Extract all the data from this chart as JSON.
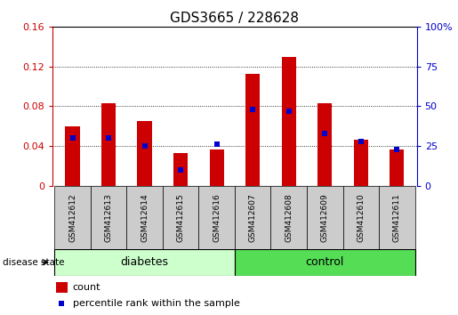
{
  "title": "GDS3665 / 228628",
  "samples": [
    "GSM412612",
    "GSM412613",
    "GSM412614",
    "GSM412615",
    "GSM412616",
    "GSM412607",
    "GSM412608",
    "GSM412609",
    "GSM412610",
    "GSM412611"
  ],
  "count": [
    0.06,
    0.083,
    0.065,
    0.033,
    0.037,
    0.113,
    0.13,
    0.083,
    0.046,
    0.037
  ],
  "percentile": [
    30,
    30,
    25,
    10,
    26,
    48,
    47,
    33,
    28,
    23
  ],
  "bar_color": "#cc0000",
  "percentile_color": "#0000cc",
  "ylim_left": [
    0,
    0.16
  ],
  "ylim_right": [
    0,
    100
  ],
  "yticks_left": [
    0,
    0.04,
    0.08,
    0.12,
    0.16
  ],
  "yticks_right": [
    0,
    25,
    50,
    75,
    100
  ],
  "n_diabetes": 5,
  "n_control": 5,
  "group_label_diabetes": "diabetes",
  "group_label_control": "control",
  "disease_state_label": "disease state",
  "legend_count": "count",
  "legend_percentile": "percentile rank within the sample",
  "bar_width": 0.4,
  "title_fontsize": 11,
  "tick_fontsize": 8,
  "group_box_color_diabetes": "#ccffcc",
  "group_box_color_control": "#55dd55",
  "tick_label_color_left": "#cc0000",
  "tick_label_color_right": "#0000cc",
  "xticklabel_bg": "#cccccc"
}
